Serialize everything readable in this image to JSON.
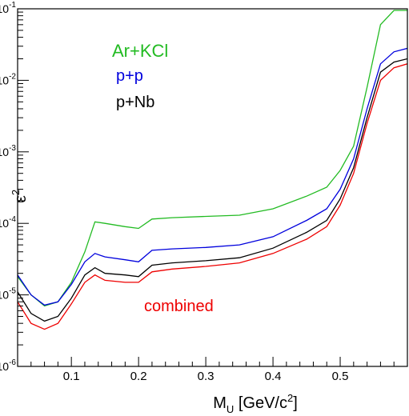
{
  "chart_data": {
    "type": "line",
    "xlabel": "M_U [GeV/c^2]",
    "ylabel": "ε^2",
    "xlim": [
      0.02,
      0.6
    ],
    "ylim": [
      1e-06,
      0.1
    ],
    "yscale": "log",
    "grid": false,
    "x_ticks": [
      {
        "value": 0.1,
        "label": "0.1"
      },
      {
        "value": 0.2,
        "label": "0.2"
      },
      {
        "value": 0.3,
        "label": "0.3"
      },
      {
        "value": 0.4,
        "label": "0.4"
      },
      {
        "value": 0.5,
        "label": "0.5"
      }
    ],
    "y_ticks": [
      {
        "value": 1e-06,
        "base": "10",
        "exp": "-6"
      },
      {
        "value": 1e-05,
        "base": "10",
        "exp": "-5"
      },
      {
        "value": 0.0001,
        "base": "10",
        "exp": "-4"
      },
      {
        "value": 0.001,
        "base": "10",
        "exp": "-3"
      },
      {
        "value": 0.01,
        "base": "10",
        "exp": "-2"
      },
      {
        "value": 0.1,
        "base": "10",
        "exp": "-1"
      }
    ],
    "series": [
      {
        "name": "Ar+KCl",
        "color": "#22bb22",
        "x": [
          0.02,
          0.04,
          0.06,
          0.08,
          0.1,
          0.12,
          0.135,
          0.15,
          0.18,
          0.2,
          0.22,
          0.25,
          0.3,
          0.35,
          0.4,
          0.45,
          0.48,
          0.5,
          0.52,
          0.54,
          0.56,
          0.58,
          0.6
        ],
        "y": [
          1.8e-05,
          1e-05,
          7e-06,
          8e-06,
          1.5e-05,
          4e-05,
          0.000105,
          0.0001,
          9e-05,
          8.5e-05,
          0.000115,
          0.00012,
          0.000125,
          0.00013,
          0.00016,
          0.00024,
          0.00032,
          0.00055,
          0.0012,
          0.008,
          0.06,
          0.095,
          0.095
        ]
      },
      {
        "name": "p+p",
        "color": "#0000dd",
        "x": [
          0.02,
          0.04,
          0.06,
          0.08,
          0.1,
          0.12,
          0.135,
          0.15,
          0.18,
          0.2,
          0.22,
          0.25,
          0.3,
          0.35,
          0.4,
          0.45,
          0.48,
          0.5,
          0.52,
          0.54,
          0.56,
          0.58,
          0.6
        ],
        "y": [
          1.9e-05,
          1e-05,
          7.2e-06,
          8e-06,
          1.4e-05,
          2.9e-05,
          3.8e-05,
          3.4e-05,
          3.1e-05,
          2.9e-05,
          4.2e-05,
          4.4e-05,
          4.6e-05,
          5e-05,
          6.5e-05,
          0.00011,
          0.00016,
          0.0003,
          0.0008,
          0.004,
          0.017,
          0.025,
          0.028
        ]
      },
      {
        "name": "p+Nb",
        "color": "#000000",
        "x": [
          0.02,
          0.04,
          0.06,
          0.08,
          0.1,
          0.12,
          0.135,
          0.15,
          0.18,
          0.2,
          0.22,
          0.25,
          0.3,
          0.35,
          0.4,
          0.45,
          0.48,
          0.5,
          0.52,
          0.54,
          0.56,
          0.58,
          0.6
        ],
        "y": [
          1.1e-05,
          5.5e-06,
          4.3e-06,
          5e-06,
          9e-06,
          1.9e-05,
          2.4e-05,
          2e-05,
          1.9e-05,
          1.8e-05,
          2.6e-05,
          2.8e-05,
          3e-05,
          3.3e-05,
          4.5e-05,
          7.5e-05,
          0.00011,
          0.00022,
          0.0006,
          0.003,
          0.013,
          0.018,
          0.02
        ]
      },
      {
        "name": "combined",
        "color": "#ee0000",
        "x": [
          0.02,
          0.04,
          0.06,
          0.08,
          0.1,
          0.12,
          0.135,
          0.15,
          0.18,
          0.2,
          0.22,
          0.25,
          0.3,
          0.35,
          0.4,
          0.45,
          0.48,
          0.5,
          0.52,
          0.54,
          0.56,
          0.58,
          0.6
        ],
        "y": [
          8e-06,
          4e-06,
          3.3e-06,
          4e-06,
          7.5e-06,
          1.5e-05,
          1.9e-05,
          1.6e-05,
          1.5e-05,
          1.5e-05,
          2.1e-05,
          2.3e-05,
          2.5e-05,
          2.8e-05,
          3.8e-05,
          6e-05,
          9e-05,
          0.00018,
          0.0005,
          0.0025,
          0.01,
          0.015,
          0.017
        ]
      }
    ]
  }
}
